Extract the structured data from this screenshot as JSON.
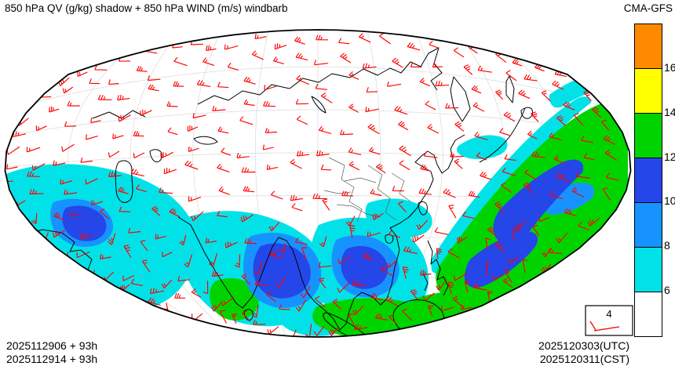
{
  "header": {
    "title": "850 hPa QV (g/kg) shadow + 850 hPa WIND (m/s) windbarb",
    "model": "CMA-GFS"
  },
  "footer": {
    "init_line1": "2025112906 + 93h",
    "init_line2": "2025112914 + 93h",
    "valid_line1": "2025120303(UTC)",
    "valid_line2": "2025120311(CST)"
  },
  "reference_barb": {
    "label": "4"
  },
  "colorbar": {
    "units": "g/kg",
    "ticks": [
      "16",
      "14",
      "12",
      "10",
      "8",
      "6"
    ],
    "segments": [
      {
        "id": "orange",
        "range": "> 16",
        "color": "#FF8A00"
      },
      {
        "id": "yellow",
        "range": "14 - 16",
        "color": "#FFFF00"
      },
      {
        "id": "green",
        "range": "12 - 14",
        "color": "#00D400"
      },
      {
        "id": "blue-dark",
        "range": "10 - 12",
        "color": "#2546E8"
      },
      {
        "id": "blue",
        "range": "8 - 10",
        "color": "#1793FF"
      },
      {
        "id": "cyan",
        "range": "6 - 8",
        "color": "#00E2E8"
      },
      {
        "id": "white",
        "range": "< 6",
        "color": "#FFFFFF"
      }
    ]
  },
  "map": {
    "outline_color": "#000000",
    "graticule_color": "#DCDCDC",
    "coast_color": "#000000",
    "windbarb_color": "#FF0000",
    "barb_grid": {
      "cols": 24,
      "rows": 14,
      "staff_length": 15,
      "feather_length": 6.5
    }
  },
  "chart_data": {
    "type": "heatmap",
    "title": "850 hPa QV (g/kg) shadow + 850 hPa WIND (m/s) windbarb",
    "field": "850 hPa specific humidity (QV) shaded",
    "units": "g/kg",
    "levels": [
      6,
      8,
      10,
      12,
      14,
      16
    ],
    "level_colors": [
      "#FFFFFF",
      "#00E2E8",
      "#1793FF",
      "#2546E8",
      "#00D400",
      "#FFFF00",
      "#FF8A00"
    ],
    "overlay": "850 hPa wind plotted as red wind barbs (m/s), reference barb = 4 m/s",
    "model": "CMA-GFS",
    "init_time": "2025112906 UTC / 2025112914 CST",
    "forecast_hour": "93h",
    "valid_time": "2025120303 UTC / 2025120311 CST",
    "region": "Asia, fan-shaped (conic-style) map projection",
    "legend_position": "right",
    "moist_regions": [
      "Arabian Sea / west Indian Ocean: QV 6-12 with embedded 10-12 cores",
      "India / Bay of Bengal: QV 6-12, green >12 over far southern India",
      "Indochina / South China Sea: QV 6-12",
      "Maritime continent (Sumatra, Borneo, Java): QV 12-14 (green)",
      "Philippines / western Pacific broad band: QV 12-14 with 10-12 streaks",
      "Northern interior Asia: dry, QV < 6 (white)"
    ]
  }
}
